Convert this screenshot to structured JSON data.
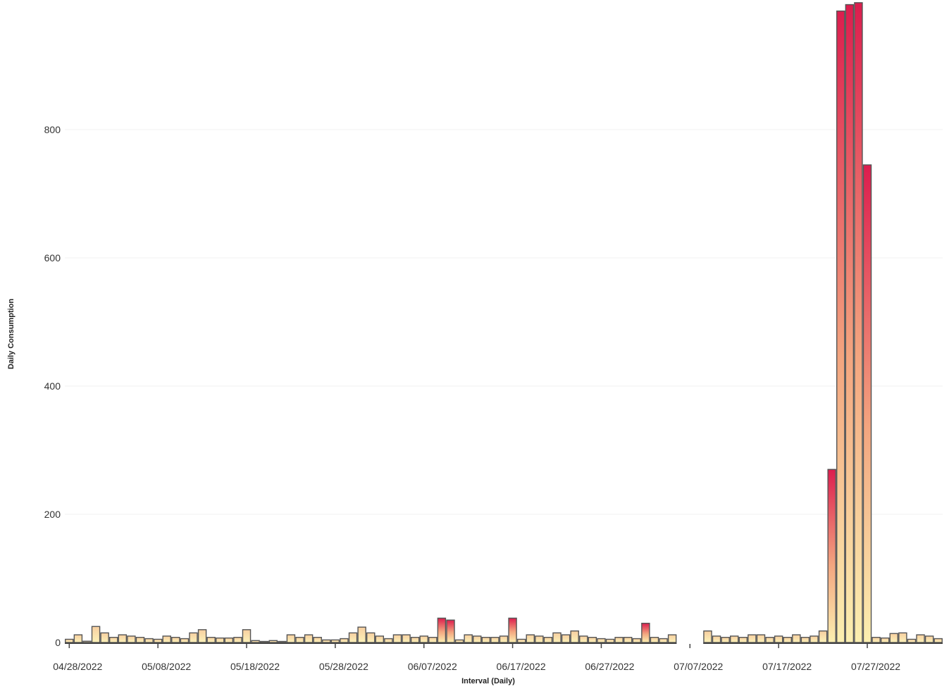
{
  "chart_data": {
    "type": "bar",
    "title": "",
    "xlabel": "Interval (Daily)",
    "ylabel": "Daily Consumption",
    "ylim": [
      0,
      1000
    ],
    "yticks": [
      0,
      200,
      400,
      600,
      800
    ],
    "grid": true,
    "legend": "none",
    "x_start": "04/28/2022",
    "x_tick_labels": [
      "04/28/2022",
      "05/08/2022",
      "05/18/2022",
      "05/28/2022",
      "06/07/2022",
      "06/17/2022",
      "06/27/2022",
      "07/07/2022",
      "07/17/2022",
      "07/27/2022"
    ],
    "colors": {
      "low": "#f9eaa8",
      "high": "#dc1d4e",
      "outline": "#555555"
    },
    "values": [
      5,
      12,
      2,
      25,
      15,
      8,
      12,
      10,
      8,
      6,
      5,
      10,
      8,
      6,
      15,
      20,
      8,
      7,
      7,
      8,
      20,
      3,
      1,
      3,
      1,
      12,
      8,
      12,
      8,
      4,
      4,
      6,
      15,
      24,
      15,
      10,
      6,
      12,
      12,
      8,
      10,
      8,
      38,
      35,
      4,
      12,
      10,
      8,
      8,
      10,
      38,
      5,
      12,
      10,
      8,
      15,
      12,
      18,
      10,
      8,
      6,
      5,
      8,
      8,
      6,
      30,
      8,
      6,
      12,
      null,
      null,
      null,
      18,
      10,
      8,
      10,
      8,
      12,
      12,
      8,
      10,
      8,
      12,
      8,
      10,
      18,
      270,
      985,
      995,
      998,
      745,
      8,
      7,
      14,
      15,
      5,
      12,
      10,
      6
    ]
  }
}
